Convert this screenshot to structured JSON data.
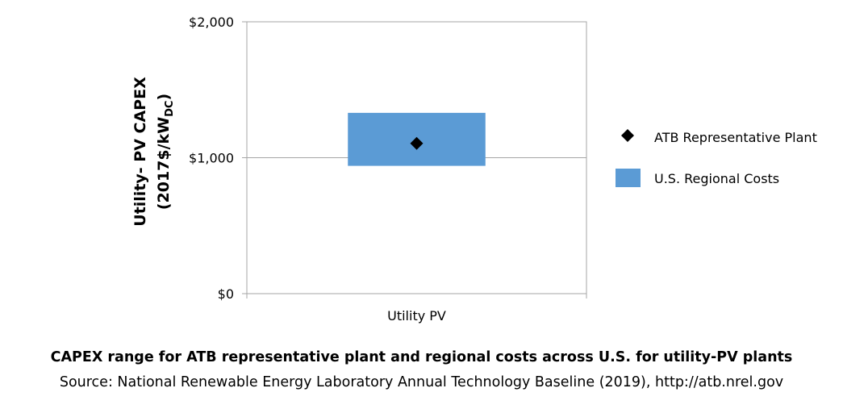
{
  "chart_data": {
    "type": "range-bar",
    "categories": [
      "Utility PV"
    ],
    "ylabel_line1": "Utility- PV CAPEX",
    "ylabel_line2_prefix": "(2017$/kW",
    "ylabel_line2_sub": "DC",
    "ylabel_line2_suffix": ")",
    "ylim": [
      0,
      2000
    ],
    "yticks": [
      0,
      1000,
      2000
    ],
    "ytick_labels": [
      "$0",
      "$1,000",
      "$2,000"
    ],
    "grid": true,
    "series": [
      {
        "name": "U.S. Regional Costs",
        "kind": "range",
        "color": "#5b9bd5",
        "low": [
          940
        ],
        "high": [
          1330
        ]
      },
      {
        "name": "ATB Representative Plant",
        "kind": "marker",
        "marker": "diamond",
        "color": "#000000",
        "values": [
          1105
        ]
      }
    ],
    "legend_position": "right"
  },
  "caption": {
    "title": "CAPEX range for ATB representative plant and regional costs across U.S. for utility-PV plants",
    "source": "Source: National Renewable Energy Laboratory Annual Technology Baseline (2019), http://atb.nrel.gov"
  }
}
